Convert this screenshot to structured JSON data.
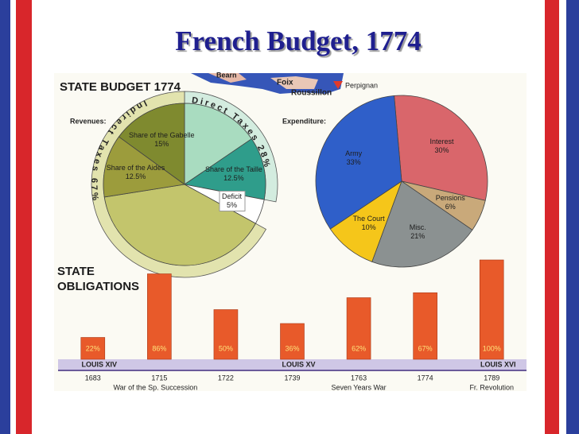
{
  "title": "French Budget, 1774",
  "map_labels": [
    "Bearn",
    "Foix",
    "Roussillon",
    "Perpignan"
  ],
  "chart_data": [
    {
      "type": "pie",
      "title": "STATE BUDGET 1774",
      "subtitle": "Revenues:",
      "categories": [
        null,
        "Share of the Taille",
        "Deficit",
        null,
        "Share of the Aides",
        "Share of the Gabelle"
      ],
      "values": [
        15.5,
        12.5,
        5,
        39.5,
        12.5,
        15
      ],
      "value_labels": [
        null,
        "12.5%",
        "5%",
        null,
        "12.5%",
        "15%"
      ],
      "colors": [
        "#a9dcc0",
        "#2f9d8b",
        "#ffffff",
        "#c3c56c",
        "#9c9c3c",
        "#7f8a2f"
      ],
      "groups": [
        {
          "name": "Direct Taxes",
          "value": 28,
          "value_label": "28%",
          "color": "#d3ecdf"
        },
        {
          "name": "Indirect Taxes",
          "value": 67,
          "value_label": "67%",
          "color": "#e2e3ae"
        }
      ]
    },
    {
      "type": "pie",
      "subtitle": "Expenditure:",
      "categories": [
        "Interest",
        "Pensions",
        "Misc.",
        "The Court",
        "Army"
      ],
      "values": [
        30,
        6,
        21,
        10,
        33
      ],
      "value_labels": [
        "30%",
        "6%",
        "21%",
        "10%",
        "33%"
      ],
      "colors": [
        "#d9666b",
        "#c9a97a",
        "#8b9191",
        "#f5c61a",
        "#2f5fc9"
      ]
    },
    {
      "type": "bar",
      "title": "STATE OBLIGATIONS",
      "categories": [
        "1683",
        "1715",
        "1722",
        "1739",
        "1763",
        "1774",
        "1789"
      ],
      "values": [
        22,
        86,
        50,
        36,
        62,
        67,
        100
      ],
      "value_labels": [
        "22%",
        "86%",
        "50%",
        "36%",
        "62%",
        "67%",
        "100%"
      ],
      "color": "#e85a2a",
      "ylim": [
        0,
        100
      ],
      "eras": [
        "LOUIS XIV",
        "LOUIS XV",
        "LOUIS XVI"
      ],
      "events": [
        "War of the Sp. Succession",
        "Seven Years War",
        "Fr. Revolution"
      ]
    }
  ]
}
